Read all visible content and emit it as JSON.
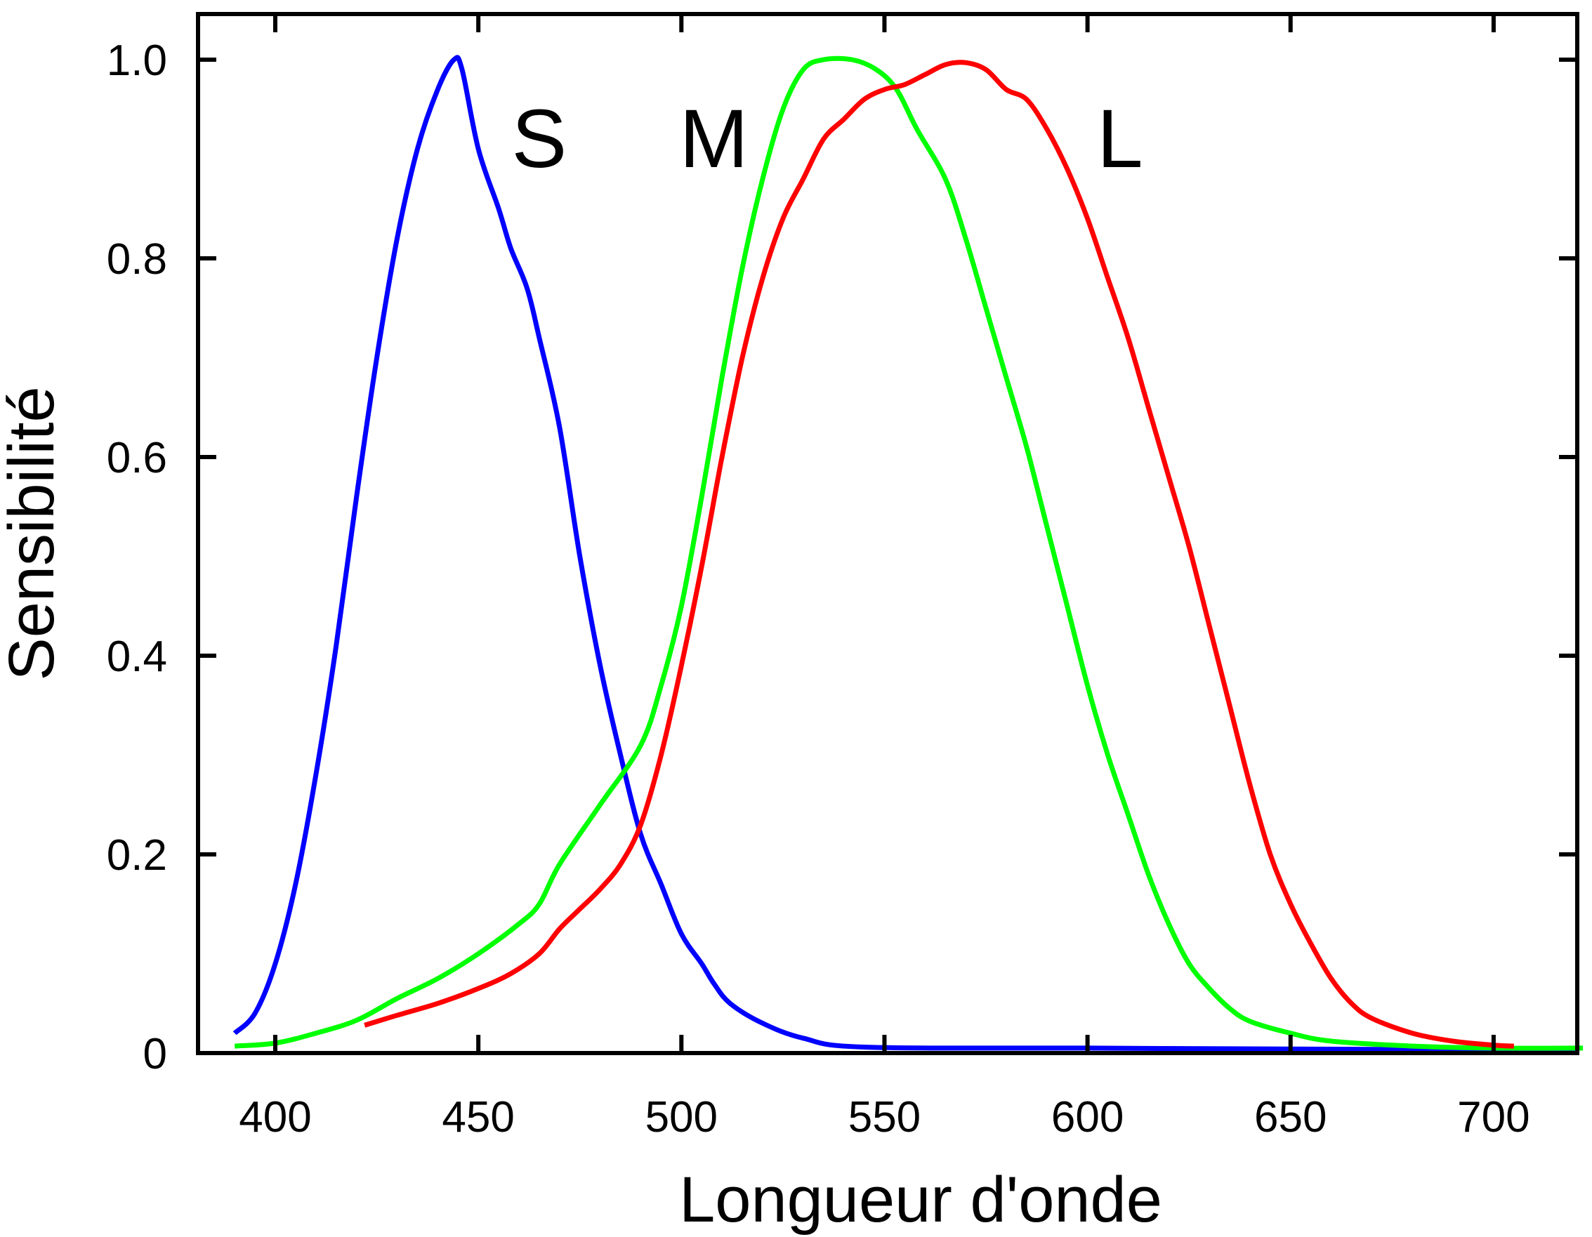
{
  "chart_data": {
    "type": "line",
    "title": "",
    "xlabel": "Longueur d'onde",
    "ylabel": "Sensibilité",
    "xlim": [
      383,
      723
    ],
    "ylim": [
      0,
      1.0
    ],
    "x_ticks": [
      400,
      450,
      500,
      550,
      600,
      650,
      700
    ],
    "x_tick_labels": [
      "400",
      "450",
      "500",
      "550",
      "600",
      "650",
      "700"
    ],
    "y_ticks": [
      0,
      0.2,
      0.4,
      0.6,
      0.8,
      1.0
    ],
    "y_tick_labels": [
      "0",
      "0.2",
      "0.4",
      "0.6",
      "0.8",
      "1.0"
    ],
    "grid": false,
    "legend": "inline curve labels near peaks",
    "series": [
      {
        "name": "S",
        "color": "#0000ff",
        "label_pos": [
          465,
          0.92
        ],
        "points": [
          [
            390,
            0.02
          ],
          [
            395,
            0.04
          ],
          [
            400,
            0.09
          ],
          [
            405,
            0.17
          ],
          [
            410,
            0.28
          ],
          [
            415,
            0.41
          ],
          [
            420,
            0.56
          ],
          [
            425,
            0.7
          ],
          [
            430,
            0.82
          ],
          [
            435,
            0.91
          ],
          [
            440,
            0.97
          ],
          [
            444,
            1.0
          ],
          [
            446,
            0.99
          ],
          [
            450,
            0.91
          ],
          [
            455,
            0.85
          ],
          [
            458,
            0.81
          ],
          [
            462,
            0.77
          ],
          [
            465,
            0.72
          ],
          [
            470,
            0.63
          ],
          [
            475,
            0.5
          ],
          [
            480,
            0.39
          ],
          [
            485,
            0.3
          ],
          [
            490,
            0.22
          ],
          [
            495,
            0.17
          ],
          [
            500,
            0.12
          ],
          [
            505,
            0.09
          ],
          [
            508,
            0.07
          ],
          [
            512,
            0.05
          ],
          [
            520,
            0.03
          ],
          [
            530,
            0.015
          ],
          [
            545,
            0.006
          ],
          [
            600,
            0.005
          ],
          [
            650,
            0.004
          ],
          [
            720,
            0.003
          ]
        ]
      },
      {
        "name": "M",
        "color": "#00ff00",
        "label_pos": [
          508,
          0.92
        ],
        "points": [
          [
            390,
            0.007
          ],
          [
            400,
            0.01
          ],
          [
            410,
            0.02
          ],
          [
            420,
            0.033
          ],
          [
            430,
            0.055
          ],
          [
            440,
            0.075
          ],
          [
            450,
            0.1
          ],
          [
            460,
            0.13
          ],
          [
            465,
            0.15
          ],
          [
            470,
            0.19
          ],
          [
            480,
            0.25
          ],
          [
            490,
            0.31
          ],
          [
            495,
            0.37
          ],
          [
            500,
            0.45
          ],
          [
            505,
            0.56
          ],
          [
            510,
            0.68
          ],
          [
            515,
            0.79
          ],
          [
            520,
            0.88
          ],
          [
            525,
            0.95
          ],
          [
            530,
            0.99
          ],
          [
            535,
            1.0
          ],
          [
            542,
            1.0
          ],
          [
            548,
            0.99
          ],
          [
            553,
            0.97
          ],
          [
            558,
            0.93
          ],
          [
            565,
            0.88
          ],
          [
            570,
            0.82
          ],
          [
            575,
            0.75
          ],
          [
            580,
            0.68
          ],
          [
            585,
            0.61
          ],
          [
            590,
            0.53
          ],
          [
            595,
            0.45
          ],
          [
            600,
            0.37
          ],
          [
            605,
            0.3
          ],
          [
            610,
            0.24
          ],
          [
            615,
            0.18
          ],
          [
            620,
            0.13
          ],
          [
            625,
            0.09
          ],
          [
            630,
            0.065
          ],
          [
            635,
            0.045
          ],
          [
            640,
            0.032
          ],
          [
            650,
            0.02
          ],
          [
            660,
            0.012
          ],
          [
            680,
            0.007
          ],
          [
            700,
            0.005
          ],
          [
            722,
            0.005
          ]
        ]
      },
      {
        "name": "L",
        "color": "#ff0000",
        "label_pos": [
          608,
          0.92
        ],
        "points": [
          [
            422,
            0.028
          ],
          [
            430,
            0.038
          ],
          [
            440,
            0.05
          ],
          [
            450,
            0.065
          ],
          [
            458,
            0.08
          ],
          [
            465,
            0.1
          ],
          [
            470,
            0.125
          ],
          [
            475,
            0.145
          ],
          [
            480,
            0.165
          ],
          [
            485,
            0.19
          ],
          [
            490,
            0.23
          ],
          [
            495,
            0.3
          ],
          [
            500,
            0.39
          ],
          [
            505,
            0.49
          ],
          [
            510,
            0.6
          ],
          [
            515,
            0.7
          ],
          [
            520,
            0.78
          ],
          [
            525,
            0.84
          ],
          [
            530,
            0.88
          ],
          [
            535,
            0.92
          ],
          [
            540,
            0.94
          ],
          [
            545,
            0.96
          ],
          [
            550,
            0.97
          ],
          [
            555,
            0.975
          ],
          [
            560,
            0.985
          ],
          [
            565,
            0.995
          ],
          [
            570,
            0.997
          ],
          [
            575,
            0.99
          ],
          [
            580,
            0.97
          ],
          [
            585,
            0.96
          ],
          [
            590,
            0.93
          ],
          [
            595,
            0.89
          ],
          [
            600,
            0.84
          ],
          [
            605,
            0.78
          ],
          [
            610,
            0.72
          ],
          [
            615,
            0.65
          ],
          [
            620,
            0.58
          ],
          [
            625,
            0.51
          ],
          [
            630,
            0.43
          ],
          [
            635,
            0.35
          ],
          [
            640,
            0.27
          ],
          [
            645,
            0.2
          ],
          [
            650,
            0.15
          ],
          [
            655,
            0.11
          ],
          [
            660,
            0.075
          ],
          [
            665,
            0.05
          ],
          [
            670,
            0.035
          ],
          [
            680,
            0.02
          ],
          [
            690,
            0.012
          ],
          [
            700,
            0.008
          ],
          [
            705,
            0.007
          ]
        ]
      }
    ]
  }
}
